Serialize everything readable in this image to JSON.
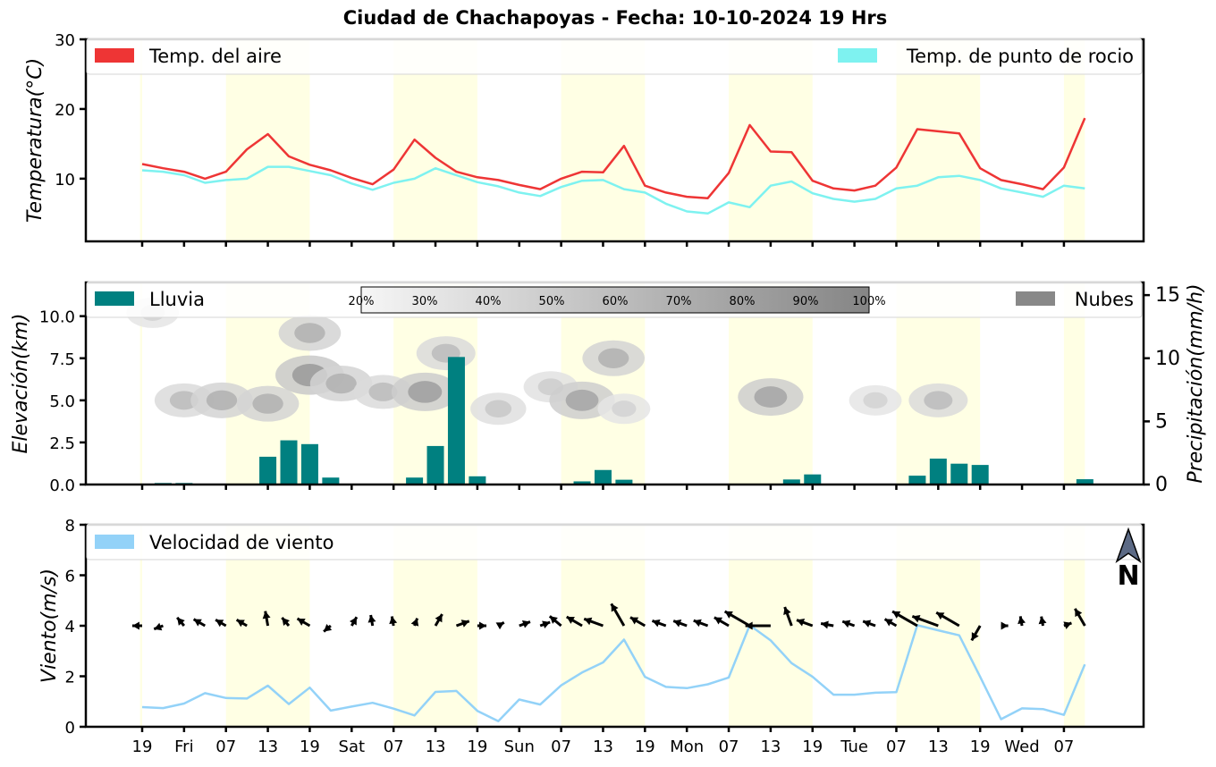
{
  "title": "Ciudad de Chachapoyas   -   Fecha: 10-10-2024 19 Hrs",
  "x_tick_labels": [
    "19",
    "Fri",
    "07",
    "13",
    "19",
    "Sat",
    "07",
    "13",
    "19",
    "Sun",
    "07",
    "13",
    "19",
    "Mon",
    "07",
    "13",
    "19",
    "Tue",
    "07",
    "13",
    "19",
    "Wed",
    "07"
  ],
  "north_label": "N",
  "colors": {
    "air": "#ee3535",
    "dew": "#7ef2f0",
    "rain": "#008080",
    "clouds": "#888888",
    "wind": "#93d2f8",
    "day_shade": "#ffffe4",
    "arrow": "#000000"
  },
  "chart_data": [
    {
      "type": "line",
      "ylabel": "Temperatura(°C)",
      "ylim": [
        1,
        30
      ],
      "yticks": [
        10,
        20,
        30
      ],
      "legend": [
        "Temp. del aire",
        "Temp. de punto de rocio"
      ],
      "series": [
        {
          "name": "Temp. del aire",
          "values": [
            12.1,
            11.5,
            11.0,
            10.0,
            11.0,
            14.2,
            16.4,
            13.2,
            12.0,
            11.2,
            10.1,
            9.2,
            11.3,
            15.6,
            13.0,
            11.0,
            10.2,
            9.8,
            9.1,
            8.5,
            10.0,
            11.0,
            10.9,
            14.7,
            9.0,
            8.0,
            7.4,
            7.2,
            10.8,
            17.7,
            13.9,
            13.8,
            9.7,
            8.6,
            8.3,
            9.0,
            11.6,
            17.1,
            16.8,
            16.5,
            11.5,
            9.8,
            9.2,
            8.5,
            11.6,
            18.7
          ]
        },
        {
          "name": "Temp. de punto de rocio",
          "values": [
            11.2,
            11.0,
            10.5,
            9.4,
            9.8,
            10.0,
            11.7,
            11.7,
            11.1,
            10.5,
            9.3,
            8.4,
            9.4,
            10.0,
            11.5,
            10.5,
            9.5,
            8.9,
            8.0,
            7.5,
            8.8,
            9.7,
            9.8,
            8.5,
            8.0,
            6.4,
            5.3,
            5.0,
            6.6,
            5.9,
            9.0,
            9.6,
            7.9,
            7.1,
            6.7,
            7.1,
            8.6,
            9.0,
            10.2,
            10.4,
            9.8,
            8.6,
            8.0,
            7.4,
            9.0,
            8.6
          ]
        }
      ]
    },
    {
      "type": "bar",
      "ylabel": "Elevación(km)",
      "ylim": [
        0,
        12
      ],
      "yticks": [
        0.0,
        2.5,
        5.0,
        7.5,
        10.0
      ],
      "ylabel_right": "Precipitación(mm/h)",
      "ylim_right": [
        0,
        16
      ],
      "yticks_right": [
        0,
        5,
        10,
        15
      ],
      "legend": [
        "Lluvia",
        "Nubes"
      ],
      "colorbar_labels": [
        "20%",
        "30%",
        "40%",
        "50%",
        "60%",
        "70%",
        "80%",
        "90%",
        "100%"
      ],
      "rain_values": [
        0,
        0.12,
        0.12,
        0,
        0,
        0,
        2.2,
        3.5,
        3.2,
        0.55,
        0,
        0,
        0,
        0.55,
        3.05,
        10.1,
        0.65,
        0,
        0.05,
        0,
        0,
        0.25,
        1.15,
        0.38,
        0.05,
        0,
        0,
        0,
        0,
        0,
        0,
        0.4,
        0.8,
        0,
        0,
        0,
        0,
        0.7,
        2.05,
        1.65,
        1.55,
        0,
        0,
        0,
        0,
        0.42
      ],
      "clouds": [
        {
          "x": 0.5,
          "z": 10.2,
          "cover": 0.3
        },
        {
          "x": 2.0,
          "z": 5.0,
          "cover": 0.5
        },
        {
          "x": 3.8,
          "z": 5.0,
          "cover": 0.6
        },
        {
          "x": 6.0,
          "z": 4.8,
          "cover": 0.6
        },
        {
          "x": 8.0,
          "z": 6.5,
          "cover": 0.8
        },
        {
          "x": 8.0,
          "z": 9.0,
          "cover": 0.6
        },
        {
          "x": 9.5,
          "z": 6.0,
          "cover": 0.6
        },
        {
          "x": 11.5,
          "z": 5.5,
          "cover": 0.5
        },
        {
          "x": 13.5,
          "z": 5.5,
          "cover": 0.75
        },
        {
          "x": 14.5,
          "z": 7.8,
          "cover": 0.5
        },
        {
          "x": 17.0,
          "z": 4.5,
          "cover": 0.4
        },
        {
          "x": 19.5,
          "z": 5.8,
          "cover": 0.35
        },
        {
          "x": 21.0,
          "z": 5.0,
          "cover": 0.7
        },
        {
          "x": 22.5,
          "z": 7.5,
          "cover": 0.6
        },
        {
          "x": 23.0,
          "z": 4.5,
          "cover": 0.3
        },
        {
          "x": 30.0,
          "z": 5.2,
          "cover": 0.7
        },
        {
          "x": 35.0,
          "z": 5.0,
          "cover": 0.3
        },
        {
          "x": 38.0,
          "z": 5.0,
          "cover": 0.5
        }
      ]
    },
    {
      "type": "line",
      "ylabel": "Viento(m/s)",
      "ylim": [
        0,
        8
      ],
      "yticks": [
        0,
        2,
        4,
        6,
        8
      ],
      "legend": [
        "Velocidad de viento"
      ],
      "series": [
        {
          "name": "Velocidad de viento",
          "values": [
            0.78,
            0.74,
            0.92,
            1.33,
            1.14,
            1.12,
            1.63,
            0.9,
            1.55,
            0.64,
            0.8,
            0.95,
            0.72,
            0.45,
            1.38,
            1.42,
            0.63,
            0.22,
            1.08,
            0.88,
            1.64,
            2.15,
            2.55,
            3.45,
            1.98,
            1.58,
            1.53,
            1.68,
            1.95,
            4.02,
            3.42,
            2.52,
            1.98,
            1.27,
            1.27,
            1.35,
            1.37,
            4.02,
            3.82,
            3.62,
            1.98,
            0.3,
            0.73,
            0.7,
            0.47,
            2.47
          ]
        }
      ],
      "wind_direction_deg": [
        270,
        250,
        320,
        300,
        300,
        300,
        350,
        320,
        300,
        230,
        30,
        350,
        350,
        20,
        30,
        70,
        90,
        60,
        70,
        70,
        310,
        300,
        290,
        330,
        300,
        290,
        290,
        290,
        300,
        300,
        270,
        340,
        290,
        280,
        290,
        290,
        300,
        300,
        290,
        300,
        210,
        90,
        350,
        350,
        70,
        330
      ]
    }
  ]
}
